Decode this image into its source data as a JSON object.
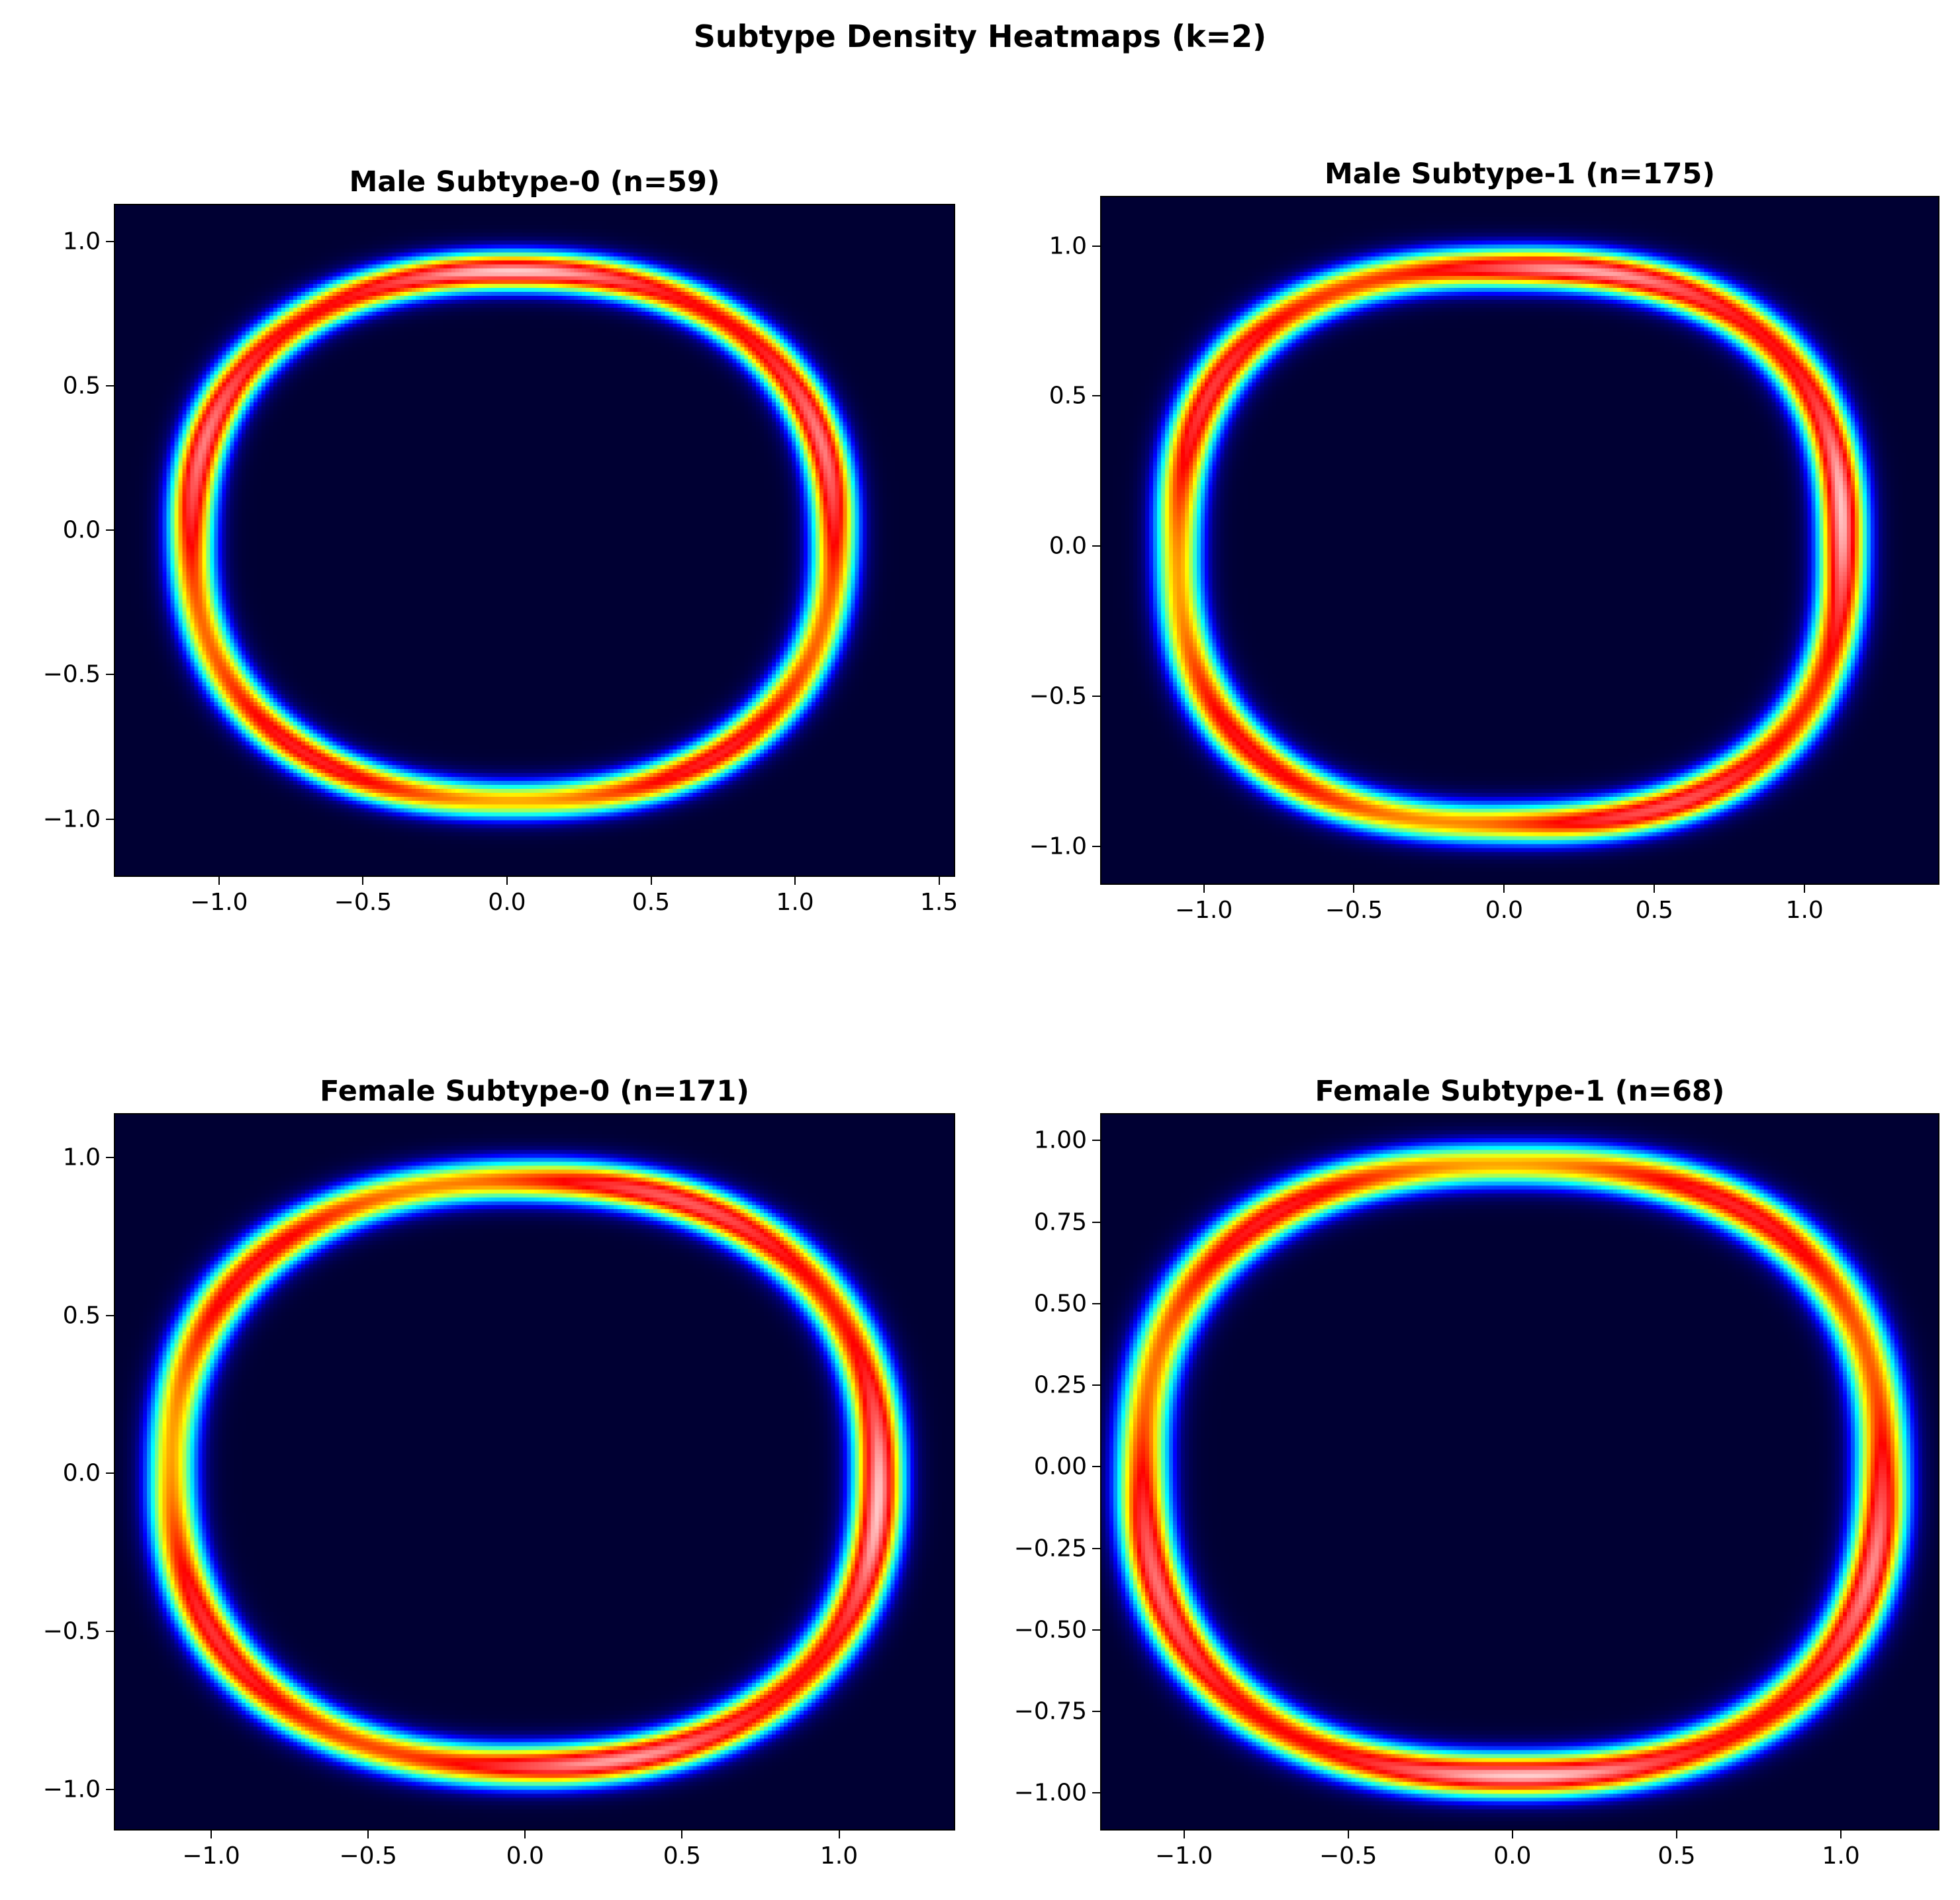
{
  "title": "Subtype Density Heatmaps (k=2)",
  "colormap": [
    "#000033",
    "#00007a",
    "#0000ff",
    "#0080ff",
    "#00ffff",
    "#80ff80",
    "#ffff00",
    "#ff8000",
    "#ff0000",
    "#ff6060",
    "#ffffff"
  ],
  "chart_data": [
    {
      "type": "heatmap",
      "title": "Male Subtype-0 (n=59)",
      "xlim": [
        -1.365,
        1.556
      ],
      "ylim": [
        -1.2,
        1.13
      ],
      "xticks": [
        -1.0,
        -0.5,
        0.0,
        0.5,
        1.0,
        1.5
      ],
      "xticklabels": [
        "−1.0",
        "−0.5",
        "0.0",
        "0.5",
        "1.0",
        "1.5"
      ],
      "yticks": [
        1.0,
        0.5,
        0.0,
        -0.5,
        -1.0
      ],
      "yticklabels": [
        "1.0",
        "0.5",
        "0.0",
        "−0.5",
        "−1.0"
      ],
      "ring": {
        "cx": 0.02,
        "cy": -0.02,
        "rx": 1.12,
        "ry": 0.92,
        "width": 0.06,
        "squareness": 2.3
      }
    },
    {
      "type": "heatmap",
      "title": "Male Subtype-1 (n=175)",
      "xlim": [
        -1.345,
        1.449
      ],
      "ylim": [
        -1.129,
        1.167
      ],
      "xticks": [
        -1.0,
        -0.5,
        0.0,
        0.5,
        1.0
      ],
      "xticklabels": [
        "−1.0",
        "−0.5",
        "0.0",
        "0.5",
        "1.0"
      ],
      "yticks": [
        1.0,
        0.5,
        0.0,
        -0.5,
        -1.0
      ],
      "yticklabels": [
        "1.0",
        "0.5",
        "0.0",
        "−0.5",
        "−1.0"
      ],
      "ring": {
        "cx": 0.02,
        "cy": 0.0,
        "rx": 1.11,
        "ry": 0.93,
        "width": 0.06,
        "squareness": 2.5
      }
    },
    {
      "type": "heatmap",
      "title": "Female Subtype-0 (n=171)",
      "xlim": [
        -1.31,
        1.37
      ],
      "ylim": [
        -1.13,
        1.14
      ],
      "xticks": [
        -1.0,
        -0.5,
        0.0,
        0.5,
        1.0
      ],
      "xticklabels": [
        "−1.0",
        "−0.5",
        "0.0",
        "0.5",
        "1.0"
      ],
      "yticks": [
        1.0,
        0.5,
        0.0,
        -0.5,
        -1.0
      ],
      "yticklabels": [
        "1.0",
        "0.5",
        "0.0",
        "−0.5",
        "−1.0"
      ],
      "ring": {
        "cx": 0.0,
        "cy": 0.0,
        "rx": 1.13,
        "ry": 0.93,
        "width": 0.06,
        "squareness": 2.3
      }
    },
    {
      "type": "heatmap",
      "title": "Female Subtype-1 (n=68)",
      "xlim": [
        -1.255,
        1.3
      ],
      "ylim": [
        -1.115,
        1.084
      ],
      "xticks": [
        -1.0,
        -0.5,
        0.0,
        0.5,
        1.0
      ],
      "xticklabels": [
        "−1.0",
        "−0.5",
        "0.0",
        "0.5",
        "1.0"
      ],
      "yticks": [
        1.0,
        0.75,
        0.5,
        0.25,
        0.0,
        -0.25,
        -0.5,
        -0.75,
        -1.0
      ],
      "yticklabels": [
        "1.00",
        "0.75",
        "0.50",
        "0.25",
        "0.00",
        "−0.25",
        "−0.50",
        "−0.75",
        "−1.00"
      ],
      "ring": {
        "cx": 0.0,
        "cy": -0.01,
        "rx": 1.13,
        "ry": 0.94,
        "width": 0.06,
        "squareness": 2.4
      }
    }
  ]
}
